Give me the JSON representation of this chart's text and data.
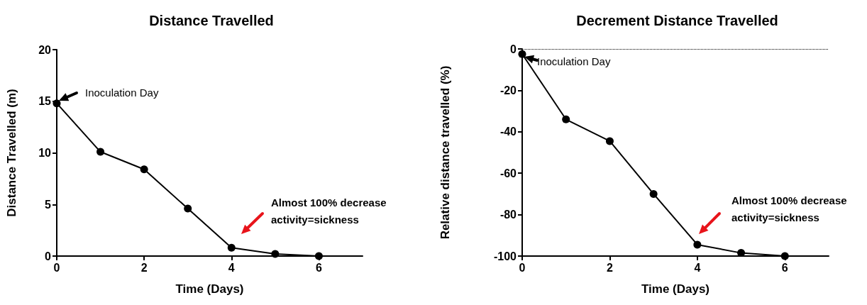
{
  "chart_data": [
    {
      "type": "line",
      "title": "Distance Travelled",
      "xlabel": "Time (Days)",
      "ylabel": "Distance Travelled (m)",
      "x": [
        0,
        1,
        2,
        3,
        4,
        5,
        6
      ],
      "series": [
        {
          "color": "#000000",
          "values": [
            14.8,
            10.1,
            8.4,
            4.6,
            0.8,
            0.2,
            0
          ]
        }
      ],
      "xlim": [
        0,
        7
      ],
      "xticks": [
        0,
        2,
        4,
        6
      ],
      "ylim": [
        0,
        20
      ],
      "yticks": [
        0,
        5,
        10,
        15,
        20
      ],
      "marker": "circle",
      "line_style": "solid",
      "annotations": [
        "Inoculation Day",
        "Almost 100% decrease\nactivity=sickness"
      ]
    },
    {
      "type": "line",
      "title": "Decrement Distance Travelled",
      "xlabel": "Time (Days)",
      "ylabel": "Relative distance travelled (%)",
      "x": [
        0,
        1,
        2,
        3,
        4,
        5,
        6
      ],
      "series": [
        {
          "color": "#000000",
          "values": [
            -2.5,
            -34,
            -44.5,
            -70,
            -94.5,
            -98.5,
            -100
          ]
        }
      ],
      "xlim": [
        0,
        7
      ],
      "xticks": [
        0,
        2,
        4,
        6
      ],
      "ylim": [
        -100,
        0
      ],
      "yticks": [
        -100,
        -80,
        -60,
        -40,
        -20,
        0
      ],
      "marker": "circle",
      "line_style": "solid",
      "ref_lines": [
        {
          "axis": "y",
          "value": 0,
          "color": "#000000",
          "line_style": "dotted"
        }
      ],
      "annotations": [
        "Inoculation Day",
        "Almost 100% decrease\nactivity=sickness"
      ]
    }
  ]
}
